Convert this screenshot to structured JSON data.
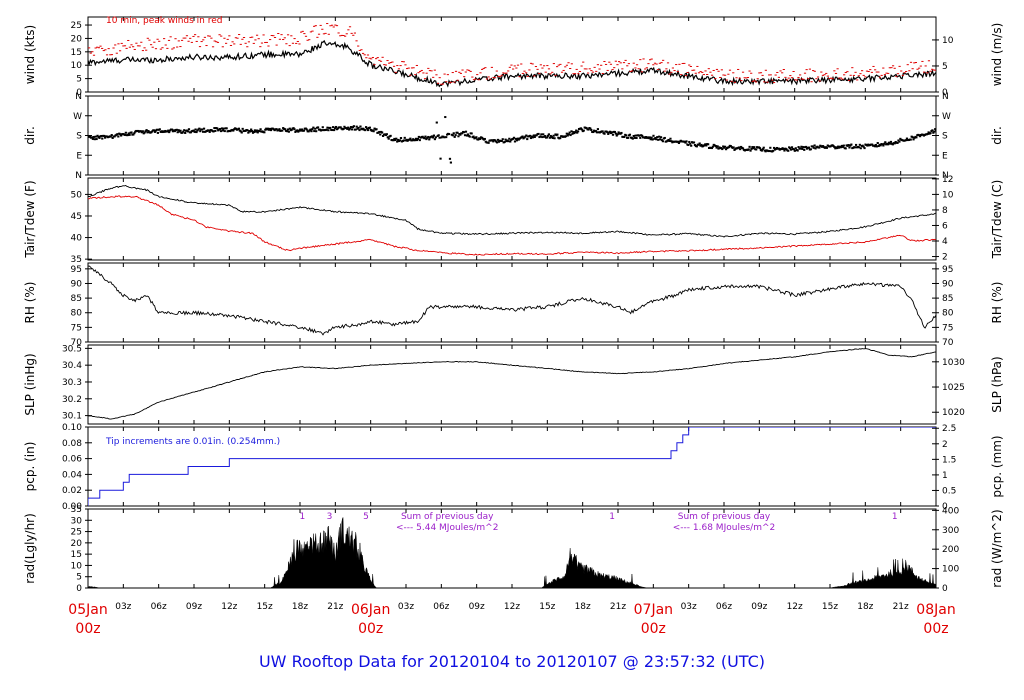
{
  "page": {
    "footer_title": "UW Rooftop Data for 20120104  to  20120107 @ 23:57:32  (UTC)"
  },
  "colors": {
    "primary": "#000000",
    "peak_wind": "#e00000",
    "dewpoint": "#e00000",
    "precip": "#1a1adc",
    "annotation_blue": "#1a1adc",
    "annotation_purple": "#9b1fc9",
    "date_labels": "#e00000",
    "footer_title": "#1010e0"
  },
  "x_axis": {
    "hour_ticks": [
      "03z",
      "06z",
      "09z",
      "12z",
      "15z",
      "18z",
      "21z",
      "06Jan",
      "03z",
      "06z",
      "09z",
      "12z",
      "15z",
      "18z",
      "21z",
      "07Jan",
      "03z",
      "06z",
      "09z",
      "12z",
      "15z",
      "18z",
      "21z",
      "08Jan"
    ],
    "date_labels": [
      {
        "day": "05Jan",
        "hour": "00z",
        "t": 0
      },
      {
        "day": "06Jan",
        "hour": "00z",
        "t": 24
      },
      {
        "day": "07Jan",
        "hour": "00z",
        "t": 48
      },
      {
        "day": "08Jan",
        "hour": "00z",
        "t": 72
      }
    ],
    "range_hours": [
      0,
      72
    ]
  },
  "chart_data": [
    {
      "type": "line",
      "ylabel": "wind (kts)",
      "ylabel_right": "wind (m/s)",
      "annotation": "10 min, peak winds in red",
      "ylim": [
        0,
        28
      ],
      "yticks_left": [
        0,
        5,
        10,
        15,
        20,
        25
      ],
      "yticks_right": [
        {
          "value": 0,
          "at": 0
        },
        {
          "value": 5,
          "at": 9.72
        },
        {
          "value": 10,
          "at": 19.44
        }
      ],
      "series": [
        {
          "color": "#000000",
          "x": [
            0,
            3,
            6,
            9,
            12,
            15,
            18,
            20,
            22,
            24,
            30,
            36,
            42,
            48,
            54,
            60,
            66,
            72
          ],
          "y": [
            11,
            12,
            12,
            13,
            13,
            14,
            14,
            18,
            17,
            10,
            3,
            6,
            6,
            8,
            4,
            4,
            5,
            7
          ]
        },
        {
          "color": "#e00000",
          "x": [
            0,
            3,
            6,
            9,
            12,
            15,
            18,
            20,
            22,
            24,
            30,
            36,
            42,
            48,
            54,
            60,
            66,
            72
          ],
          "y": [
            15,
            17,
            18,
            19,
            19,
            19,
            20,
            24,
            23,
            12,
            5,
            8,
            9,
            10,
            6,
            6,
            7,
            10
          ]
        }
      ]
    },
    {
      "type": "scatter",
      "ylabel": "dir.",
      "ylabel_right": "dir.",
      "yticks_left": [
        {
          "label": "N",
          "value": 0
        },
        {
          "label": "E",
          "value": 90
        },
        {
          "label": "S",
          "value": 180
        },
        {
          "label": "W",
          "value": 270
        },
        {
          "label": "N",
          "value": 360
        }
      ],
      "yticks_right": [
        {
          "label": "N",
          "value": 0
        },
        {
          "label": "E",
          "value": 90
        },
        {
          "label": "S",
          "value": 180
        },
        {
          "label": "W",
          "value": 270
        },
        {
          "label": "N",
          "value": 360
        }
      ],
      "ylim": [
        0,
        360
      ],
      "series": [
        {
          "color": "#000000",
          "x": [
            0,
            2,
            4,
            6,
            8,
            10,
            12,
            14,
            16,
            18,
            20,
            22,
            24,
            26,
            28,
            30,
            32,
            34,
            36,
            38,
            40,
            42,
            44,
            46,
            48,
            50,
            52,
            54,
            56,
            58,
            60,
            62,
            64,
            66,
            68,
            70,
            72
          ],
          "y": [
            170,
            175,
            195,
            200,
            200,
            205,
            205,
            200,
            205,
            205,
            210,
            215,
            210,
            160,
            165,
            175,
            190,
            150,
            160,
            180,
            175,
            210,
            195,
            175,
            170,
            150,
            135,
            125,
            120,
            115,
            118,
            128,
            130,
            130,
            145,
            170,
            205
          ]
        }
      ]
    },
    {
      "type": "line",
      "ylabel": "Tair/Tdew (F)",
      "ylabel_right": "Tair/Tdew (C)",
      "ylim": [
        34.8,
        53.8
      ],
      "yticks_left": [
        35,
        40,
        45,
        50
      ],
      "yticks_right": [
        {
          "value": 2,
          "at": 35.6
        },
        {
          "value": 4,
          "at": 39.2
        },
        {
          "value": 6,
          "at": 42.8
        },
        {
          "value": 8,
          "at": 46.4
        },
        {
          "value": 10,
          "at": 50
        },
        {
          "value": 12,
          "at": 53.6
        }
      ],
      "series": [
        {
          "color": "#000000",
          "x": [
            0,
            2,
            3,
            5,
            6,
            8,
            9,
            12,
            13,
            15,
            18,
            21,
            24,
            27,
            28,
            30,
            33,
            36,
            39,
            42,
            45,
            48,
            51,
            54,
            57,
            60,
            63,
            66,
            69,
            72
          ],
          "y": [
            49.5,
            51.5,
            52,
            51,
            49.5,
            48.5,
            48,
            47.5,
            46,
            46,
            47,
            46,
            45.5,
            44,
            42,
            41,
            40.8,
            41,
            41.2,
            41,
            41.4,
            40.6,
            40.9,
            40.2,
            41,
            40.8,
            41.4,
            42.5,
            44.5,
            45.5
          ]
        },
        {
          "color": "#e00000",
          "x": [
            0,
            2,
            4,
            6,
            7,
            9,
            10,
            11,
            12,
            14,
            15,
            17,
            18,
            21,
            24,
            26,
            28,
            30,
            33,
            36,
            39,
            42,
            45,
            48,
            51,
            54,
            57,
            60,
            63,
            66,
            69,
            70,
            72
          ],
          "y": [
            49,
            49.5,
            49.5,
            47.5,
            45.5,
            44,
            42.5,
            42,
            41.5,
            41,
            39,
            37,
            37.5,
            38.5,
            39.5,
            38,
            37,
            36.5,
            36,
            36.3,
            36.2,
            36.6,
            36.4,
            36.8,
            36.9,
            37.3,
            37.6,
            38,
            38.5,
            39,
            40.5,
            39.2,
            39.5
          ]
        }
      ]
    },
    {
      "type": "line",
      "ylabel": "RH (%)",
      "ylabel_right": "RH (%)",
      "ylim": [
        70,
        97
      ],
      "yticks_left": [
        70,
        75,
        80,
        85,
        90,
        95
      ],
      "yticks_right": [
        {
          "value": 70,
          "at": 70
        },
        {
          "value": 75,
          "at": 75
        },
        {
          "value": 80,
          "at": 80
        },
        {
          "value": 85,
          "at": 85
        },
        {
          "value": 90,
          "at": 90
        },
        {
          "value": 95,
          "at": 95
        }
      ],
      "series": [
        {
          "color": "#000000",
          "x": [
            0,
            2,
            3,
            4,
            5,
            6,
            9,
            12,
            15,
            18,
            20,
            21,
            23,
            24,
            26,
            28,
            29,
            30,
            33,
            36,
            39,
            42,
            45,
            46,
            47,
            48,
            50,
            51,
            54,
            57,
            60,
            63,
            66,
            69,
            70,
            71,
            72
          ],
          "y": [
            96,
            90,
            86,
            84,
            86,
            80,
            80,
            79,
            77,
            75,
            73,
            75,
            76,
            77,
            76,
            77,
            82,
            82,
            82,
            81,
            82,
            85,
            82,
            80,
            82,
            84,
            86,
            88,
            89,
            89,
            86,
            88,
            90,
            89,
            84,
            75,
            79
          ]
        }
      ]
    },
    {
      "type": "line",
      "ylabel": "SLP (inHg)",
      "ylabel_right": "SLP (hPa)",
      "ylim": [
        30.05,
        30.52
      ],
      "yticks_left": [
        30.1,
        30.2,
        30.3,
        30.4,
        30.5
      ],
      "yticks_right": [
        {
          "value": 1020,
          "at": 30.12
        },
        {
          "value": 1025,
          "at": 30.27
        },
        {
          "value": 1030,
          "at": 30.42
        }
      ],
      "series": [
        {
          "color": "#000000",
          "x": [
            0,
            2,
            4,
            6,
            9,
            12,
            15,
            18,
            21,
            24,
            27,
            30,
            33,
            36,
            39,
            42,
            45,
            48,
            51,
            54,
            57,
            60,
            63,
            66,
            68,
            70,
            72
          ],
          "y": [
            30.1,
            30.08,
            30.11,
            30.18,
            30.24,
            30.3,
            30.36,
            30.39,
            30.38,
            30.4,
            30.41,
            30.42,
            30.42,
            30.4,
            30.38,
            30.36,
            30.35,
            30.36,
            30.38,
            30.41,
            30.43,
            30.45,
            30.48,
            30.5,
            30.46,
            30.45,
            30.48
          ]
        }
      ]
    },
    {
      "type": "line",
      "ylabel": "pcp. (in)",
      "ylabel_right": "pcp. (mm)",
      "annotation": "Tip increments are 0.01in. (0.254mm.)",
      "ylim": [
        0,
        0.1
      ],
      "yticks_left": [
        0.0,
        0.02,
        0.04,
        0.06,
        0.08,
        0.1
      ],
      "yticks_left_labels": [
        "0.00",
        "0.02",
        "0.04",
        "0.06",
        "0.08",
        "0.10"
      ],
      "yticks_right": [
        {
          "value": "0",
          "at": 0
        },
        {
          "value": "0.5",
          "at": 0.019685
        },
        {
          "value": "1",
          "at": 0.03937
        },
        {
          "value": "1.5",
          "at": 0.059055
        },
        {
          "value": "2",
          "at": 0.07874
        },
        {
          "value": "2.5",
          "at": 0.098425
        }
      ],
      "series": [
        {
          "color": "#1a1adc",
          "step": true,
          "x": [
            0,
            1,
            3,
            3.5,
            8.5,
            12,
            49.5,
            50,
            50.5,
            51,
            72
          ],
          "y": [
            0.01,
            0.02,
            0.03,
            0.04,
            0.05,
            0.06,
            0.07,
            0.08,
            0.09,
            0.1,
            0.1
          ]
        }
      ]
    },
    {
      "type": "area",
      "ylabel": "rad(Lgly/hr)",
      "ylabel_right": "rad (W/m^2)",
      "ylim": [
        0,
        35
      ],
      "yticks_left": [
        0,
        5,
        10,
        15,
        20,
        25,
        30,
        35
      ],
      "yticks_right": [
        {
          "value": 0,
          "at": 0
        },
        {
          "value": 100,
          "at": 8.6
        },
        {
          "value": 200,
          "at": 17.2
        },
        {
          "value": 300,
          "at": 25.8
        },
        {
          "value": 400,
          "at": 34.4
        }
      ],
      "annotations": [
        {
          "text": "Sum of previous day",
          "t": 30.5
        },
        {
          "text": "<--- 5.44 MJoules/m^2",
          "t": 30.5
        },
        {
          "text": "Sum of previous day",
          "t": 54
        },
        {
          "text": "<--- 1.68 MJoules/m^2",
          "t": 54
        }
      ],
      "markers": [
        {
          "t": 18.2,
          "label": "1"
        },
        {
          "t": 20.5,
          "label": "3"
        },
        {
          "t": 23.6,
          "label": "5"
        },
        {
          "t": 44.5,
          "label": "1"
        },
        {
          "t": 68.5,
          "label": "1"
        }
      ],
      "series": [
        {
          "color": "#000000",
          "x": [
            0,
            1,
            15.5,
            16.5,
            17.5,
            18.5,
            19.5,
            20.5,
            21,
            21.5,
            22.5,
            23.5,
            24,
            24.5,
            38.5,
            39.5,
            40.5,
            41,
            41.5,
            42.5,
            43.5,
            44.5,
            45.5,
            46.5,
            47,
            47.5,
            63,
            64,
            65,
            66,
            67,
            68,
            69,
            69.5,
            70,
            70.5,
            71,
            72
          ],
          "y": [
            1,
            0,
            0,
            4,
            20,
            26,
            24,
            30,
            18,
            33,
            26,
            12,
            4,
            0,
            0,
            4,
            7,
            20,
            12,
            10,
            7,
            6,
            4,
            2,
            0.5,
            0,
            0,
            1,
            3,
            4,
            6,
            8,
            10,
            13,
            9,
            6,
            4,
            2
          ]
        }
      ]
    }
  ]
}
